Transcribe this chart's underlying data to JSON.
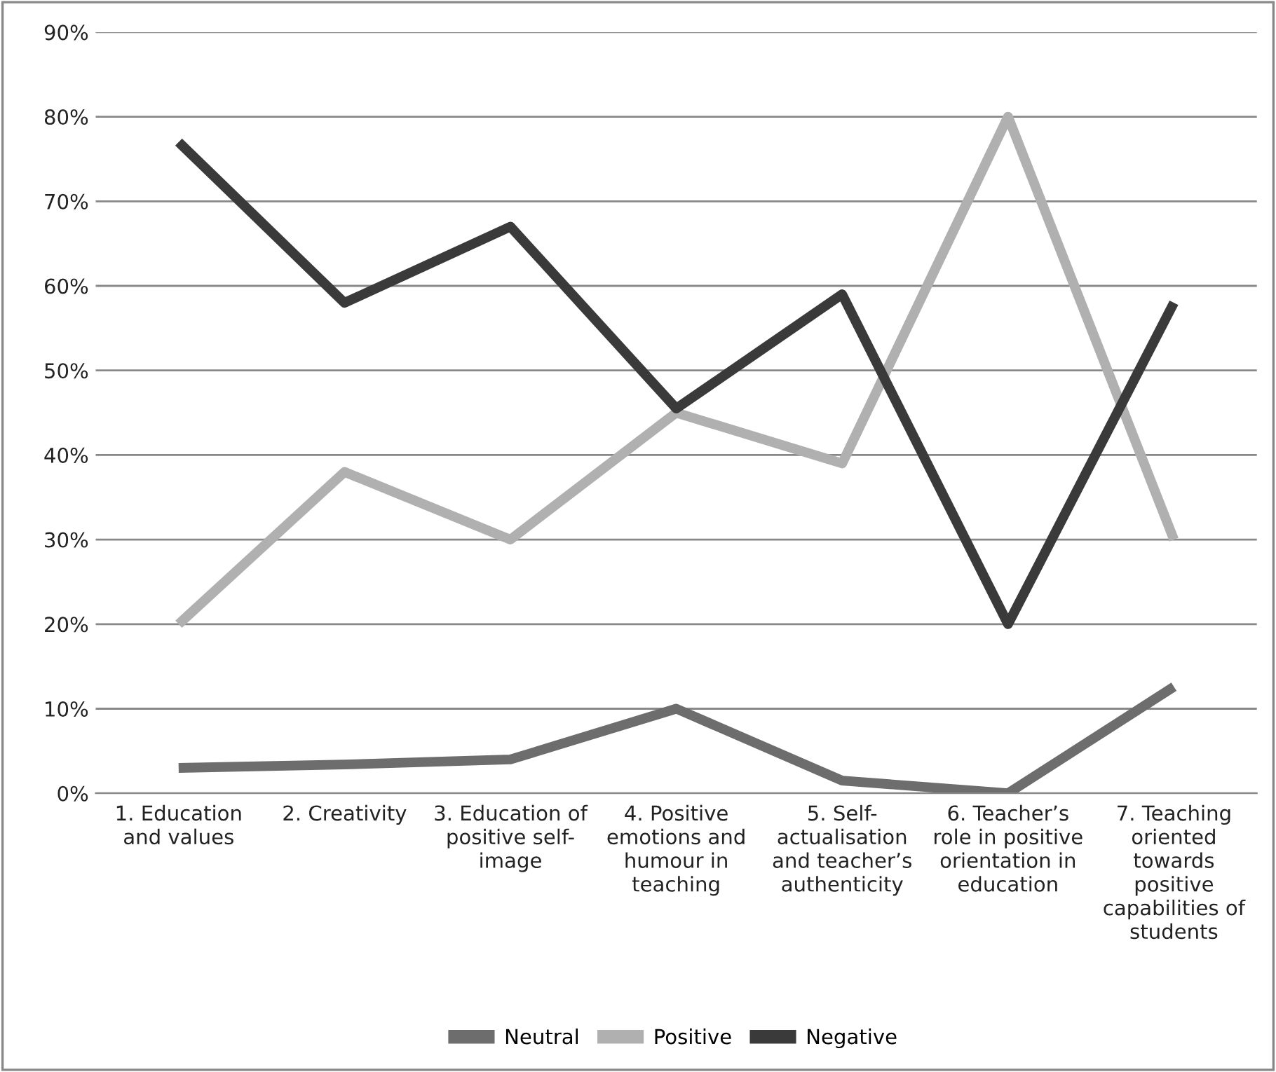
{
  "chart_data": {
    "type": "line",
    "categories": [
      "1. Education and values",
      "2. Creativity",
      "3. Education of positive self-image",
      "4. Positive emotions and humour in teaching",
      "5. Self-actualisation and teacher’s authenticity",
      "6. Teacher’s role in positive orientation in education",
      "7. Teaching oriented towards positive capabilities of students"
    ],
    "series": [
      {
        "name": "Neutral",
        "color": "#6d6d6d",
        "values": [
          3,
          3.4,
          4,
          10,
          1.5,
          0,
          12.6
        ]
      },
      {
        "name": "Positive",
        "color": "#b0b0b1",
        "values": [
          20,
          38,
          30,
          45,
          39,
          80,
          30
        ]
      },
      {
        "name": "Negative",
        "color": "#3a3a3a",
        "values": [
          77,
          58,
          67,
          45.5,
          59,
          20,
          58
        ]
      }
    ],
    "ylim": [
      0,
      90
    ],
    "yticks": [
      {
        "value": 0,
        "label": "0%"
      },
      {
        "value": 10,
        "label": "10%"
      },
      {
        "value": 20,
        "label": "20%"
      },
      {
        "value": 30,
        "label": "30%"
      },
      {
        "value": 40,
        "label": "40%"
      },
      {
        "value": 50,
        "label": "50%"
      },
      {
        "value": 60,
        "label": "60%"
      },
      {
        "value": 70,
        "label": "70%"
      },
      {
        "value": 80,
        "label": "80%"
      },
      {
        "value": 90,
        "label": "90%"
      }
    ],
    "grid": "y",
    "legend": "bottom",
    "marker": "none",
    "line_style": "solid"
  }
}
